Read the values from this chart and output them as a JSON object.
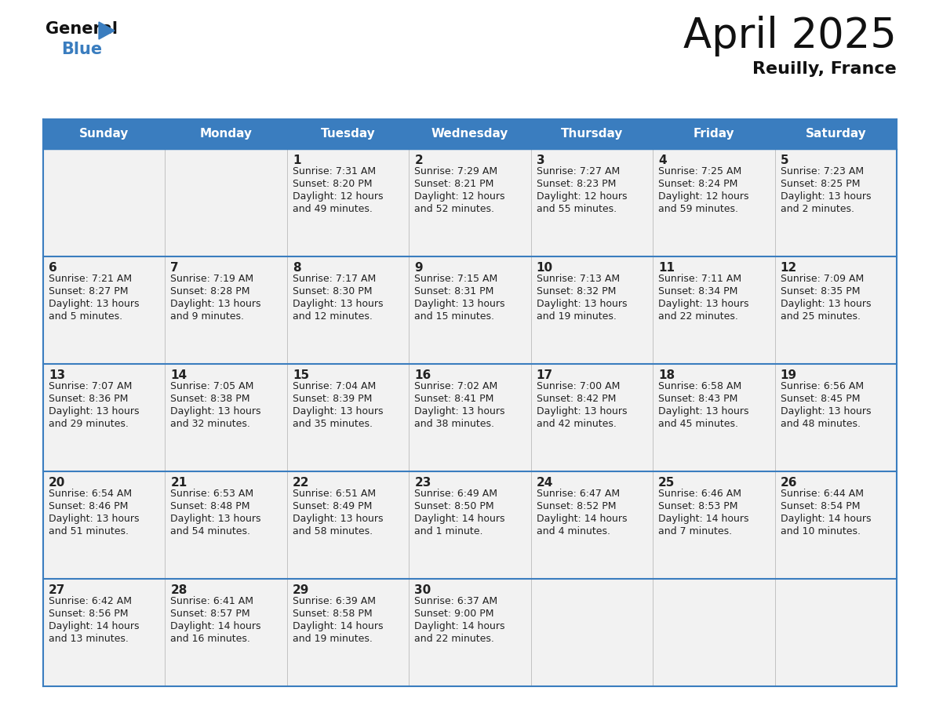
{
  "title": "April 2025",
  "subtitle": "Reuilly, France",
  "header_color": "#3a7dbf",
  "header_text_color": "#ffffff",
  "cell_bg_color": "#f2f2f2",
  "border_color": "#3a7dbf",
  "text_color": "#222222",
  "days_of_week": [
    "Sunday",
    "Monday",
    "Tuesday",
    "Wednesday",
    "Thursday",
    "Friday",
    "Saturday"
  ],
  "weeks": [
    [
      {
        "day": "",
        "info": ""
      },
      {
        "day": "",
        "info": ""
      },
      {
        "day": "1",
        "info": "Sunrise: 7:31 AM\nSunset: 8:20 PM\nDaylight: 12 hours\nand 49 minutes."
      },
      {
        "day": "2",
        "info": "Sunrise: 7:29 AM\nSunset: 8:21 PM\nDaylight: 12 hours\nand 52 minutes."
      },
      {
        "day": "3",
        "info": "Sunrise: 7:27 AM\nSunset: 8:23 PM\nDaylight: 12 hours\nand 55 minutes."
      },
      {
        "day": "4",
        "info": "Sunrise: 7:25 AM\nSunset: 8:24 PM\nDaylight: 12 hours\nand 59 minutes."
      },
      {
        "day": "5",
        "info": "Sunrise: 7:23 AM\nSunset: 8:25 PM\nDaylight: 13 hours\nand 2 minutes."
      }
    ],
    [
      {
        "day": "6",
        "info": "Sunrise: 7:21 AM\nSunset: 8:27 PM\nDaylight: 13 hours\nand 5 minutes."
      },
      {
        "day": "7",
        "info": "Sunrise: 7:19 AM\nSunset: 8:28 PM\nDaylight: 13 hours\nand 9 minutes."
      },
      {
        "day": "8",
        "info": "Sunrise: 7:17 AM\nSunset: 8:30 PM\nDaylight: 13 hours\nand 12 minutes."
      },
      {
        "day": "9",
        "info": "Sunrise: 7:15 AM\nSunset: 8:31 PM\nDaylight: 13 hours\nand 15 minutes."
      },
      {
        "day": "10",
        "info": "Sunrise: 7:13 AM\nSunset: 8:32 PM\nDaylight: 13 hours\nand 19 minutes."
      },
      {
        "day": "11",
        "info": "Sunrise: 7:11 AM\nSunset: 8:34 PM\nDaylight: 13 hours\nand 22 minutes."
      },
      {
        "day": "12",
        "info": "Sunrise: 7:09 AM\nSunset: 8:35 PM\nDaylight: 13 hours\nand 25 minutes."
      }
    ],
    [
      {
        "day": "13",
        "info": "Sunrise: 7:07 AM\nSunset: 8:36 PM\nDaylight: 13 hours\nand 29 minutes."
      },
      {
        "day": "14",
        "info": "Sunrise: 7:05 AM\nSunset: 8:38 PM\nDaylight: 13 hours\nand 32 minutes."
      },
      {
        "day": "15",
        "info": "Sunrise: 7:04 AM\nSunset: 8:39 PM\nDaylight: 13 hours\nand 35 minutes."
      },
      {
        "day": "16",
        "info": "Sunrise: 7:02 AM\nSunset: 8:41 PM\nDaylight: 13 hours\nand 38 minutes."
      },
      {
        "day": "17",
        "info": "Sunrise: 7:00 AM\nSunset: 8:42 PM\nDaylight: 13 hours\nand 42 minutes."
      },
      {
        "day": "18",
        "info": "Sunrise: 6:58 AM\nSunset: 8:43 PM\nDaylight: 13 hours\nand 45 minutes."
      },
      {
        "day": "19",
        "info": "Sunrise: 6:56 AM\nSunset: 8:45 PM\nDaylight: 13 hours\nand 48 minutes."
      }
    ],
    [
      {
        "day": "20",
        "info": "Sunrise: 6:54 AM\nSunset: 8:46 PM\nDaylight: 13 hours\nand 51 minutes."
      },
      {
        "day": "21",
        "info": "Sunrise: 6:53 AM\nSunset: 8:48 PM\nDaylight: 13 hours\nand 54 minutes."
      },
      {
        "day": "22",
        "info": "Sunrise: 6:51 AM\nSunset: 8:49 PM\nDaylight: 13 hours\nand 58 minutes."
      },
      {
        "day": "23",
        "info": "Sunrise: 6:49 AM\nSunset: 8:50 PM\nDaylight: 14 hours\nand 1 minute."
      },
      {
        "day": "24",
        "info": "Sunrise: 6:47 AM\nSunset: 8:52 PM\nDaylight: 14 hours\nand 4 minutes."
      },
      {
        "day": "25",
        "info": "Sunrise: 6:46 AM\nSunset: 8:53 PM\nDaylight: 14 hours\nand 7 minutes."
      },
      {
        "day": "26",
        "info": "Sunrise: 6:44 AM\nSunset: 8:54 PM\nDaylight: 14 hours\nand 10 minutes."
      }
    ],
    [
      {
        "day": "27",
        "info": "Sunrise: 6:42 AM\nSunset: 8:56 PM\nDaylight: 14 hours\nand 13 minutes."
      },
      {
        "day": "28",
        "info": "Sunrise: 6:41 AM\nSunset: 8:57 PM\nDaylight: 14 hours\nand 16 minutes."
      },
      {
        "day": "29",
        "info": "Sunrise: 6:39 AM\nSunset: 8:58 PM\nDaylight: 14 hours\nand 19 minutes."
      },
      {
        "day": "30",
        "info": "Sunrise: 6:37 AM\nSunset: 9:00 PM\nDaylight: 14 hours\nand 22 minutes."
      },
      {
        "day": "",
        "info": ""
      },
      {
        "day": "",
        "info": ""
      },
      {
        "day": "",
        "info": ""
      }
    ]
  ]
}
